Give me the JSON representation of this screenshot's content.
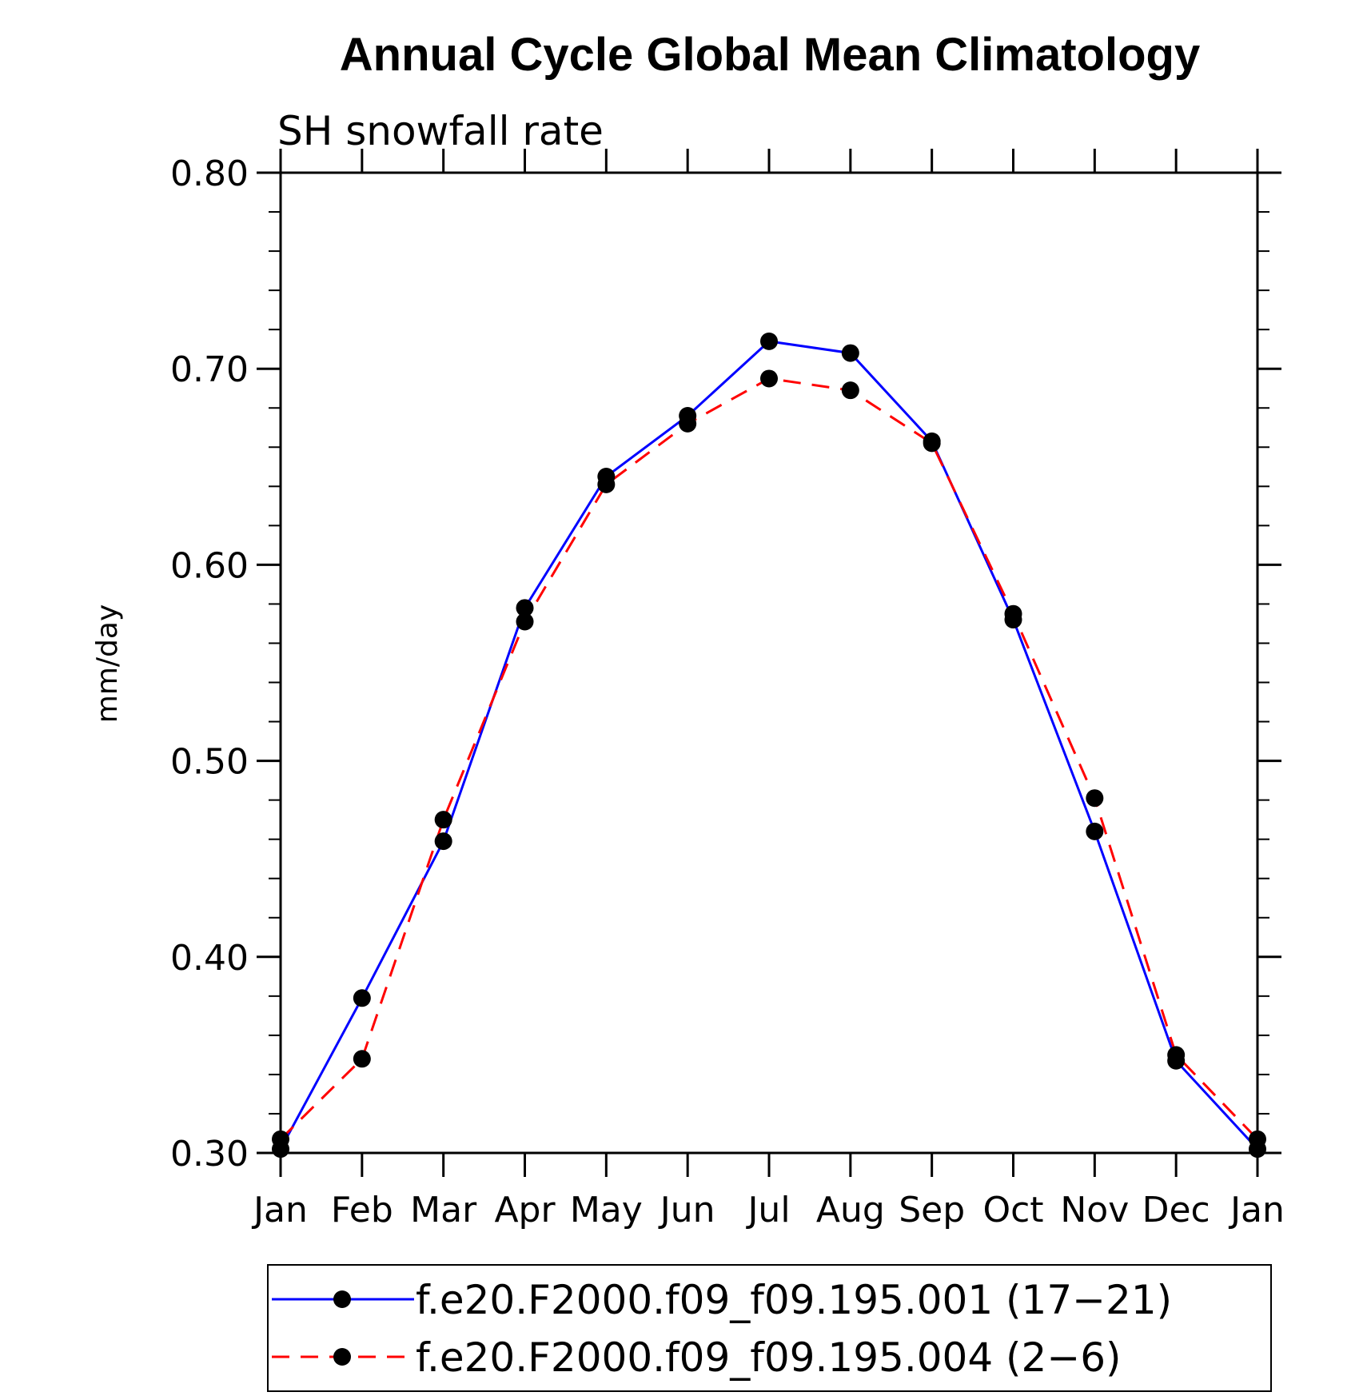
{
  "chart_data": {
    "type": "line",
    "title": "Annual Cycle Global Mean Climatology",
    "subtitle": "SH snowfall rate",
    "xlabel": "",
    "ylabel": "mm/day",
    "categories": [
      "Jan",
      "Feb",
      "Mar",
      "Apr",
      "May",
      "Jun",
      "Jul",
      "Aug",
      "Sep",
      "Oct",
      "Nov",
      "Dec",
      "Jan"
    ],
    "ylim": [
      0.3,
      0.8
    ],
    "yticks": [
      "0.30",
      "0.40",
      "0.50",
      "0.60",
      "0.70",
      "0.80"
    ],
    "series": [
      {
        "name": "f.e20.F2000.f09_f09.195.001 (17−21)",
        "color": "#0000ff",
        "dash": "solid",
        "values": [
          0.302,
          0.379,
          0.459,
          0.578,
          0.645,
          0.676,
          0.714,
          0.708,
          0.663,
          0.572,
          0.464,
          0.347,
          0.302
        ]
      },
      {
        "name": "f.e20.F2000.f09_f09.195.004 (2−6)",
        "color": "#ff0000",
        "dash": "dashed",
        "values": [
          0.307,
          0.348,
          0.47,
          0.571,
          0.641,
          0.672,
          0.695,
          0.689,
          0.662,
          0.575,
          0.481,
          0.35,
          0.307
        ]
      }
    ],
    "legend": "bottom"
  }
}
